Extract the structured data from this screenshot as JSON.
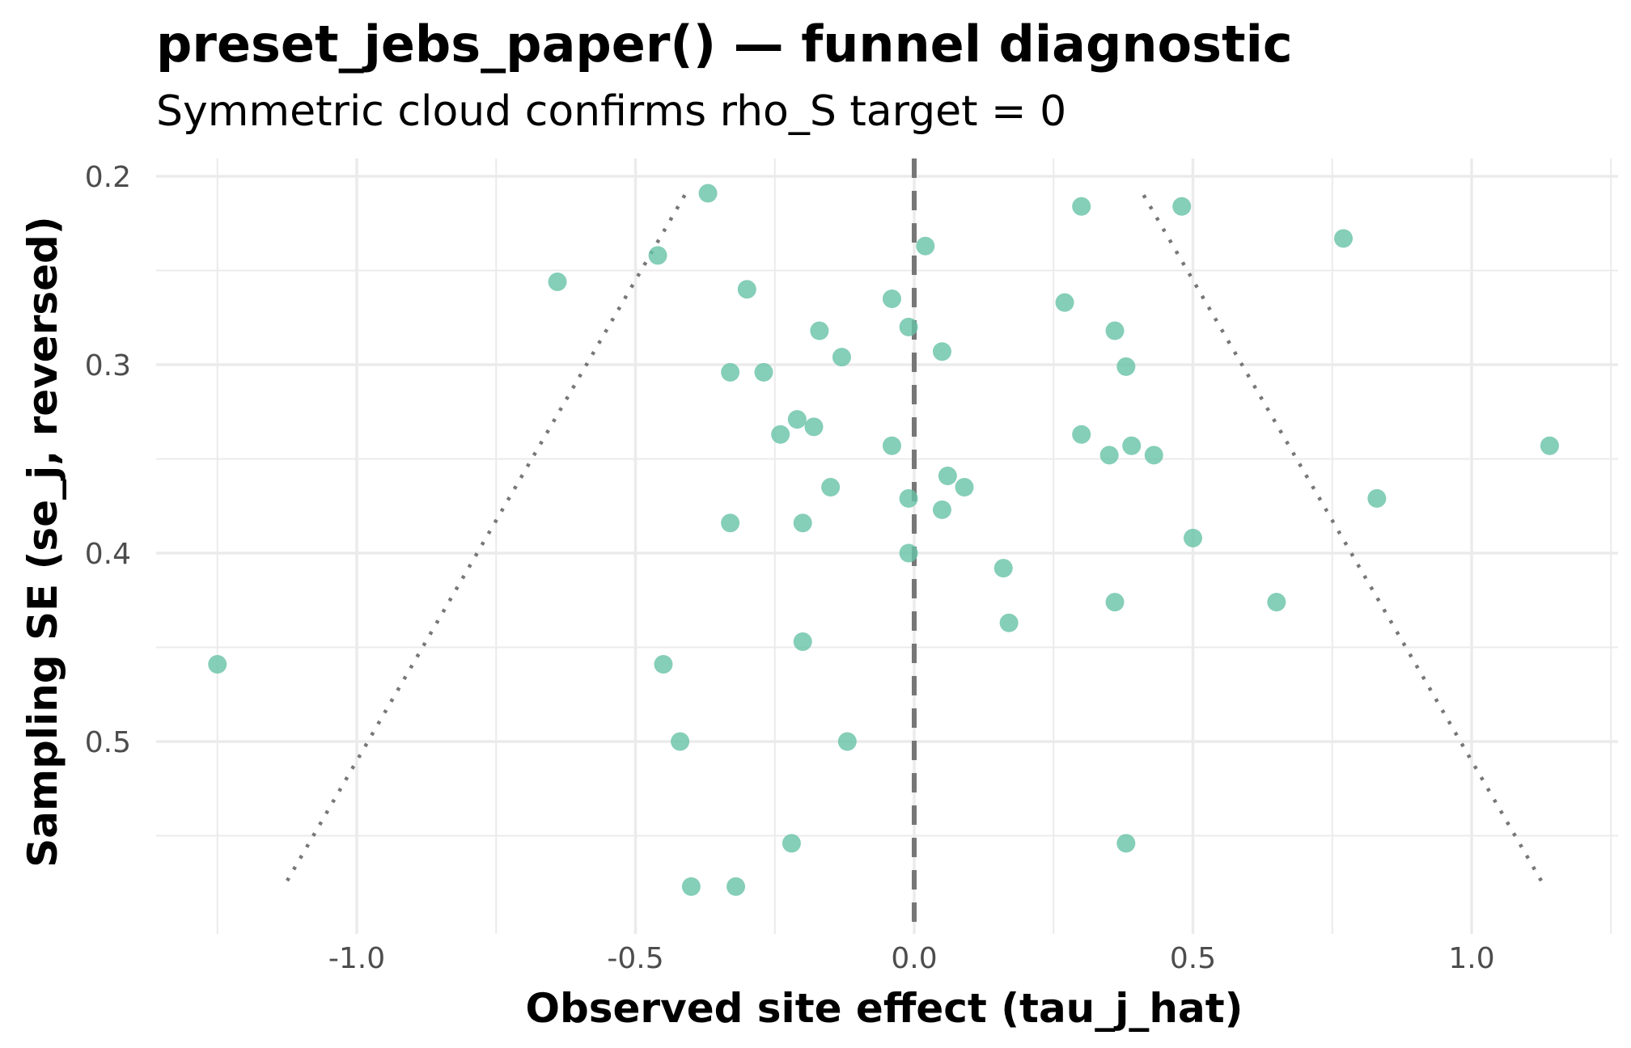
{
  "chart_data": {
    "type": "scatter",
    "title": "preset_jebs_paper() — funnel diagnostic",
    "subtitle": "Symmetric cloud confirms rho_S target = 0",
    "xlabel": "Observed site effect (tau_j_hat)",
    "ylabel": "Sampling SE (se_j, reversed)",
    "xlim": [
      -1.25,
      1.25
    ],
    "ylim": [
      0.2,
      0.58
    ],
    "y_reversed": true,
    "x_ticks": [
      -1.0,
      -0.5,
      0.0,
      0.5,
      1.0
    ],
    "x_tick_labels": [
      "-1.0",
      "-0.5",
      "0.0",
      "0.5",
      "1.0"
    ],
    "y_ticks": [
      0.2,
      0.3,
      0.4,
      0.5
    ],
    "y_tick_labels": [
      "0.2",
      "0.3",
      "0.4",
      "0.5"
    ],
    "grid": true,
    "point_color": "#66C2A5",
    "reference_line": {
      "x": 0,
      "style": "dashed",
      "color": "#777777"
    },
    "funnel_lines": {
      "style": "dotted",
      "color": "#777777",
      "multiplier": 1.96,
      "se_range": [
        0.21,
        0.577
      ]
    },
    "points": [
      {
        "x": -0.37,
        "y": 0.209
      },
      {
        "x": 0.3,
        "y": 0.216
      },
      {
        "x": 0.48,
        "y": 0.216
      },
      {
        "x": 0.02,
        "y": 0.237
      },
      {
        "x": 0.77,
        "y": 0.233
      },
      {
        "x": -0.46,
        "y": 0.242
      },
      {
        "x": -0.64,
        "y": 0.256
      },
      {
        "x": -0.3,
        "y": 0.26
      },
      {
        "x": -0.04,
        "y": 0.265
      },
      {
        "x": 0.27,
        "y": 0.267
      },
      {
        "x": -0.17,
        "y": 0.282
      },
      {
        "x": -0.01,
        "y": 0.28
      },
      {
        "x": 0.36,
        "y": 0.282
      },
      {
        "x": 0.05,
        "y": 0.293
      },
      {
        "x": -0.13,
        "y": 0.296
      },
      {
        "x": 0.38,
        "y": 0.301
      },
      {
        "x": -0.33,
        "y": 0.304
      },
      {
        "x": -0.27,
        "y": 0.304
      },
      {
        "x": -0.21,
        "y": 0.329
      },
      {
        "x": -0.18,
        "y": 0.333
      },
      {
        "x": -0.24,
        "y": 0.337
      },
      {
        "x": 0.3,
        "y": 0.337
      },
      {
        "x": -0.04,
        "y": 0.343
      },
      {
        "x": 0.39,
        "y": 0.343
      },
      {
        "x": 0.35,
        "y": 0.348
      },
      {
        "x": 0.43,
        "y": 0.348
      },
      {
        "x": 1.14,
        "y": 0.343
      },
      {
        "x": 0.06,
        "y": 0.359
      },
      {
        "x": -0.15,
        "y": 0.365
      },
      {
        "x": 0.09,
        "y": 0.365
      },
      {
        "x": -0.01,
        "y": 0.371
      },
      {
        "x": 0.05,
        "y": 0.377
      },
      {
        "x": 0.83,
        "y": 0.371
      },
      {
        "x": -0.33,
        "y": 0.384
      },
      {
        "x": -0.2,
        "y": 0.384
      },
      {
        "x": 0.5,
        "y": 0.392
      },
      {
        "x": -0.01,
        "y": 0.4
      },
      {
        "x": 0.16,
        "y": 0.408
      },
      {
        "x": 0.36,
        "y": 0.426
      },
      {
        "x": 0.65,
        "y": 0.426
      },
      {
        "x": 0.17,
        "y": 0.437
      },
      {
        "x": -0.2,
        "y": 0.447
      },
      {
        "x": -1.25,
        "y": 0.459
      },
      {
        "x": -0.45,
        "y": 0.459
      },
      {
        "x": -0.42,
        "y": 0.5
      },
      {
        "x": -0.12,
        "y": 0.5
      },
      {
        "x": -0.22,
        "y": 0.554
      },
      {
        "x": 0.38,
        "y": 0.554
      },
      {
        "x": -0.4,
        "y": 0.577
      },
      {
        "x": -0.32,
        "y": 0.577
      }
    ]
  }
}
